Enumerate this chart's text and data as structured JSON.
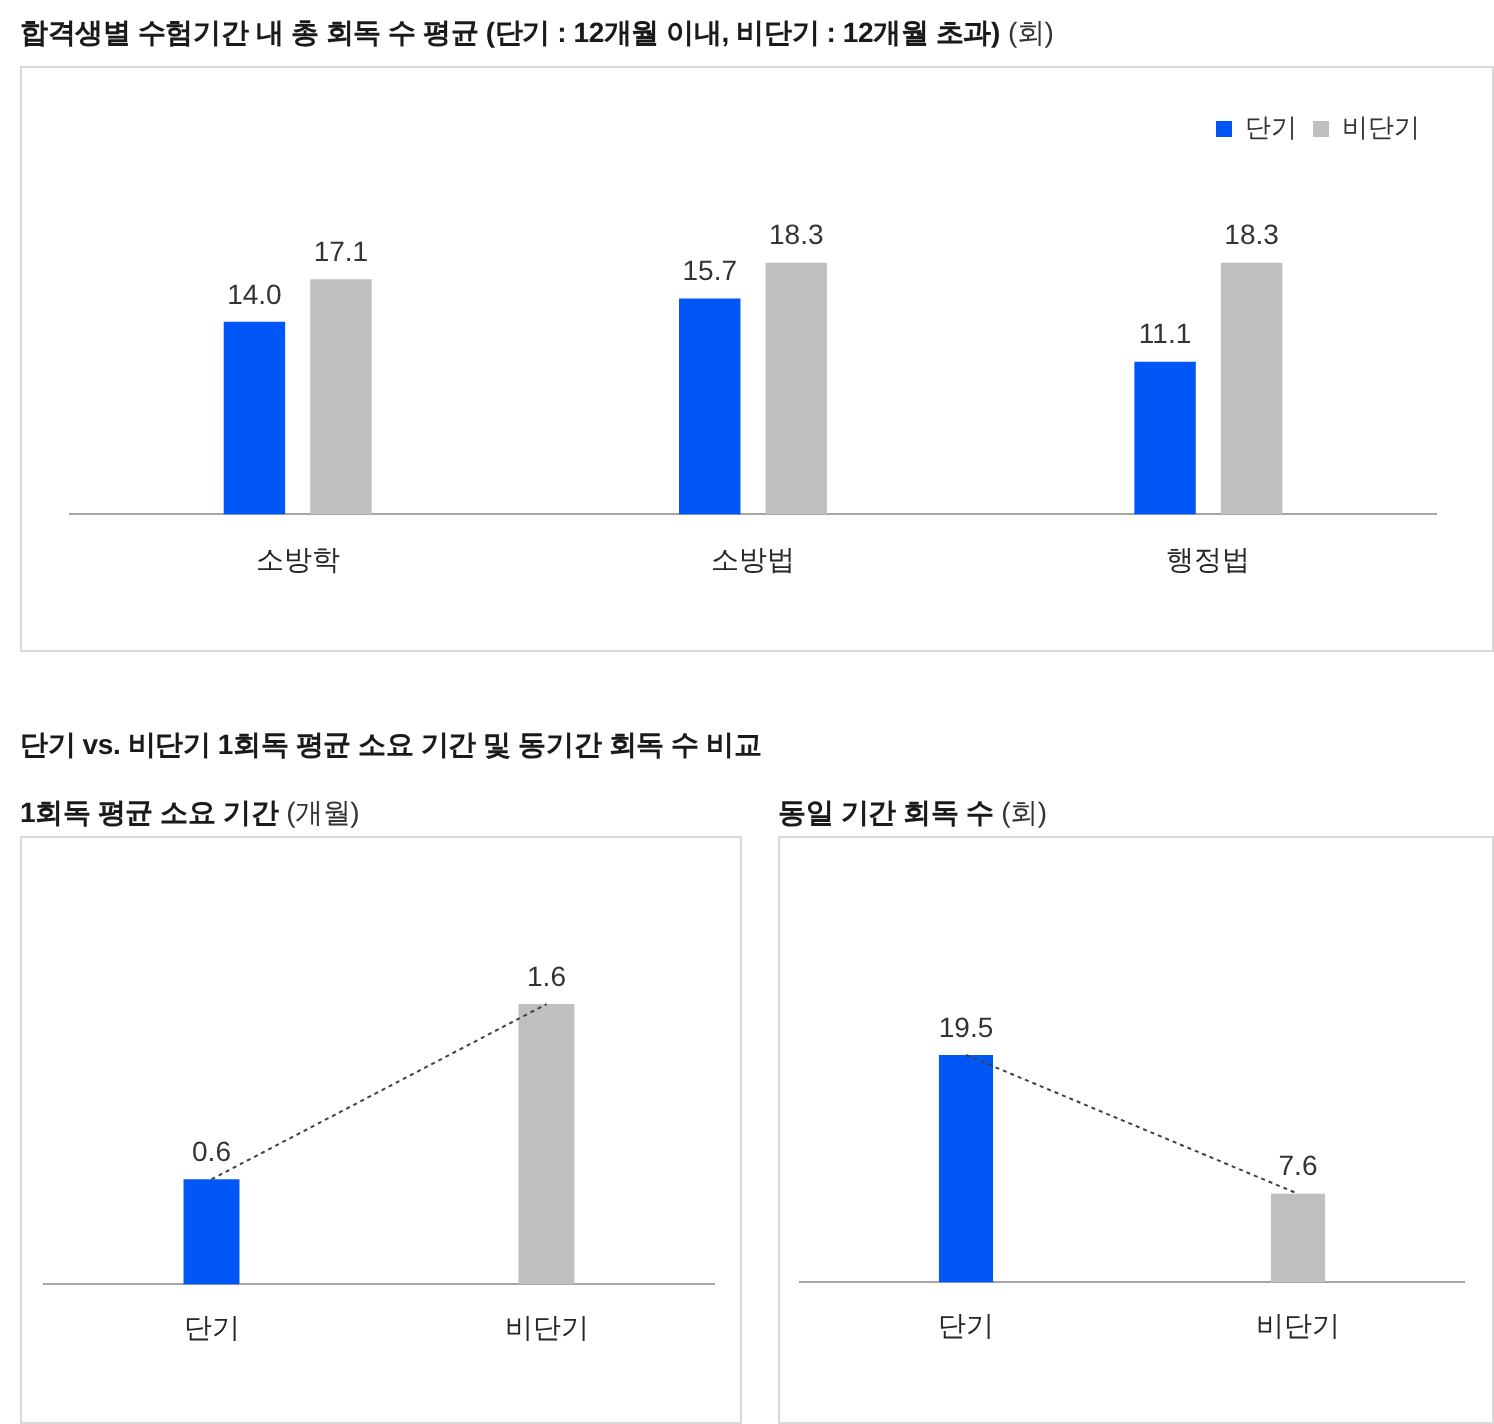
{
  "chart_data": [
    {
      "type": "bar",
      "title": "합격생별 수험기간 내 총 회독 수 평균 (단기 : 12개월 이내, 비단기 : 12개월 초과)",
      "ylabel": "(회)",
      "categories": [
        "소방학",
        "소방법",
        "행정법"
      ],
      "series": [
        {
          "name": "단기",
          "color": "#0057f5",
          "values": [
            14.0,
            15.7,
            11.1
          ],
          "value_labels": [
            "14.0",
            "15.7",
            "11.1"
          ]
        },
        {
          "name": "비단기",
          "color": "#bfbfbf",
          "values": [
            17.1,
            18.3,
            18.3
          ],
          "value_labels": [
            "17.1",
            "18.3",
            "18.3"
          ]
        }
      ],
      "legend": "top right"
    },
    {
      "type": "other",
      "title": "단기 vs. 비단기 1회독 평균 소요 기간 및 동기간 회독 수 비교"
    },
    {
      "type": "bar",
      "title": "1회독 평균 소요 기간",
      "ylabel": "(개월)",
      "categories": [
        "단기",
        "비단기"
      ],
      "series": [
        {
          "type": "bar",
          "colors": [
            "#0057f5",
            "#bfbfbf"
          ],
          "values": [
            0.6,
            1.6
          ],
          "value_labels": [
            "0.6",
            "1.6"
          ]
        },
        {
          "type": "line",
          "color": "#404040",
          "values": [
            0.6,
            1.6
          ]
        }
      ],
      "line_style": "dotted"
    },
    {
      "type": "bar",
      "title": "동일 기간 회독 수",
      "ylabel": "(회)",
      "categories": [
        "단기",
        "비단기"
      ],
      "series": [
        {
          "type": "bar",
          "colors": [
            "#0057f5",
            "#bfbfbf"
          ],
          "values": [
            19.5,
            7.6
          ],
          "value_labels": [
            "19.5",
            "7.6"
          ]
        },
        {
          "type": "line",
          "color": "#404040",
          "values": [
            19.5,
            7.6
          ]
        }
      ],
      "line_style": "dotted"
    }
  ]
}
